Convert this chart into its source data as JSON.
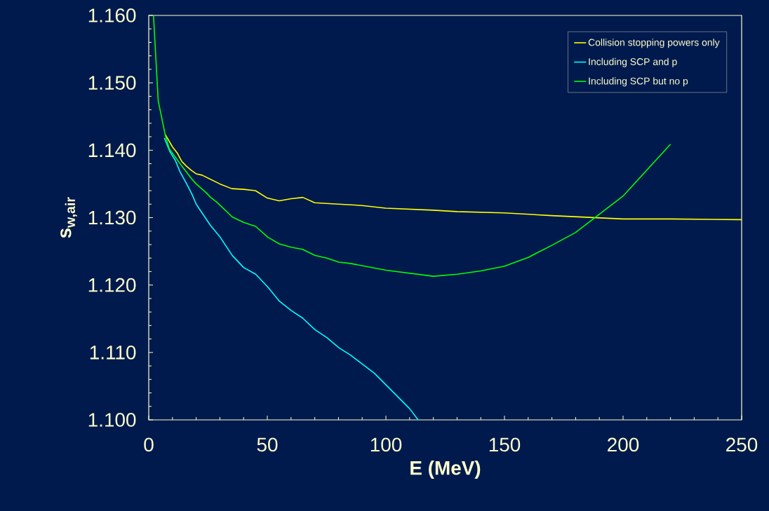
{
  "chart_data": {
    "type": "line",
    "xlabel": "E (MeV)",
    "ylabel": "s$_{w,air}$",
    "xlim": [
      0,
      250
    ],
    "xticks": [
      0,
      50,
      100,
      150,
      200,
      250
    ],
    "ylim": [
      1.1,
      1.16
    ],
    "yticks": [
      {
        "value": 1.1,
        "label": "1.100"
      },
      {
        "value": 1.11,
        "label": "1.110"
      },
      {
        "value": 1.12,
        "label": "1.120"
      },
      {
        "value": 1.13,
        "label": "1.130"
      },
      {
        "value": 1.14,
        "label": "1.140"
      },
      {
        "value": 1.15,
        "label": "1.150"
      },
      {
        "value": 1.16,
        "label": "1.160"
      }
    ],
    "legend": "top right",
    "grid": false,
    "marker": "none",
    "line_style": "solid",
    "series": [
      {
        "name": "Collision stopping powers only",
        "color": "#ffff00",
        "x": [
          7,
          10,
          12,
          14,
          16,
          18,
          20,
          22.5,
          30,
          35,
          40,
          45,
          50,
          55,
          60,
          65,
          70,
          80,
          90,
          100,
          120,
          130,
          140,
          150,
          170,
          200,
          220,
          250
        ],
        "values": [
          1.1423,
          1.1405,
          1.1396,
          1.1383,
          1.1376,
          1.137,
          1.1365,
          1.1363,
          1.135,
          1.1343,
          1.1342,
          1.134,
          1.1329,
          1.1325,
          1.1328,
          1.133,
          1.1322,
          1.132,
          1.1318,
          1.1314,
          1.1311,
          1.1309,
          1.1308,
          1.1307,
          1.1303,
          1.1298,
          1.1298,
          1.1297
        ]
      },
      {
        "name": "Including SCP and p",
        "color": "#00ffff",
        "x": [
          6.6,
          8.9,
          11.2,
          13.2,
          16.3,
          18.2,
          20,
          25.9,
          29.9,
          35.2,
          40,
          45.1,
          50.2,
          55.1,
          60.1,
          64.9,
          70,
          75.1,
          80.2,
          85.1,
          95.2,
          109.9,
          113.6
        ],
        "values": [
          1.1418,
          1.1398,
          1.1385,
          1.1368,
          1.1348,
          1.1335,
          1.132,
          1.1289,
          1.1272,
          1.1244,
          1.1226,
          1.1216,
          1.1197,
          1.1176,
          1.1162,
          1.1151,
          1.1134,
          1.1122,
          1.1107,
          1.1096,
          1.1069,
          1.1017,
          1.1
        ]
      },
      {
        "name": "Including SCP but no p",
        "color": "#00ff00",
        "x": [
          2,
          4,
          7,
          8.7,
          13.2,
          18,
          20,
          24.2,
          26.1,
          28.7,
          35.2,
          40,
          45.1,
          50.2,
          55.1,
          60.1,
          64.9,
          70,
          75.1,
          80.2,
          85.1,
          100.1,
          120,
          130,
          140,
          150,
          160,
          170,
          180,
          200,
          220
        ],
        "values": [
          1.16,
          1.1473,
          1.1422,
          1.1402,
          1.138,
          1.1358,
          1.135,
          1.1337,
          1.133,
          1.1323,
          1.1301,
          1.1293,
          1.1287,
          1.1271,
          1.1261,
          1.1256,
          1.1253,
          1.1244,
          1.124,
          1.1234,
          1.1232,
          1.1222,
          1.1213,
          1.1216,
          1.1221,
          1.1228,
          1.1241,
          1.1259,
          1.1278,
          1.1332,
          1.1409
        ]
      }
    ]
  }
}
